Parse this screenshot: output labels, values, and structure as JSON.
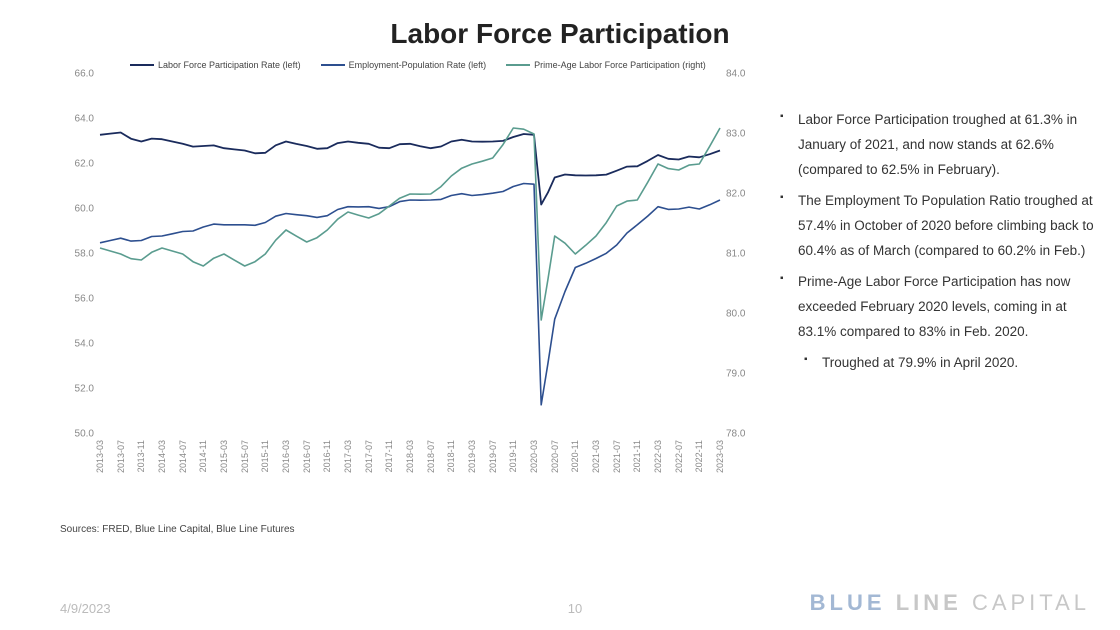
{
  "title": "Labor Force Participation",
  "sources": "Sources: FRED, Blue Line Capital, Blue Line Futures",
  "footer": {
    "date": "4/9/2023",
    "page": "10"
  },
  "brand": {
    "word1": "BLUE",
    "word2": "LINE",
    "word3": "CAPITAL"
  },
  "chart": {
    "type": "line-dual-axis",
    "background_color": "#ffffff",
    "grid_color": "#e8e8e8",
    "axis_label_color": "#888888",
    "axis_fontsize": 10,
    "left_axis": {
      "min": 50.0,
      "max": 66.0,
      "step": 2.0
    },
    "right_axis": {
      "min": 78.0,
      "max": 84.0,
      "step": 1.0
    },
    "x_labels": [
      "2013-03",
      "2013-07",
      "2013-11",
      "2014-03",
      "2014-07",
      "2014-11",
      "2015-03",
      "2015-07",
      "2015-11",
      "2016-03",
      "2016-07",
      "2016-11",
      "2017-03",
      "2017-07",
      "2017-11",
      "2018-03",
      "2018-07",
      "2018-11",
      "2019-03",
      "2019-07",
      "2019-11",
      "2020-03",
      "2020-07",
      "2020-11",
      "2021-03",
      "2021-07",
      "2021-11",
      "2022-03",
      "2022-07",
      "2022-11",
      "2023-03"
    ],
    "series": [
      {
        "name": "Labor Force Participation Rate (left)",
        "color": "#1a2b5c",
        "width": 1.8,
        "axis": "left",
        "data": [
          63.3,
          63.4,
          63.0,
          63.1,
          62.9,
          62.8,
          62.7,
          62.6,
          62.5,
          63.0,
          62.8,
          62.7,
          63.0,
          62.9,
          62.7,
          62.9,
          62.7,
          63.0,
          63.0,
          63.0,
          63.2,
          63.3,
          61.4,
          61.5,
          61.5,
          61.7,
          61.9,
          62.4,
          62.2,
          62.3,
          62.6
        ]
      },
      {
        "name": "Employment-Population Rate (left)",
        "color": "#2d4f8f",
        "width": 1.6,
        "axis": "left",
        "data": [
          58.5,
          58.7,
          58.6,
          58.8,
          59.0,
          59.2,
          59.3,
          59.3,
          59.4,
          59.8,
          59.7,
          59.7,
          60.1,
          60.1,
          60.1,
          60.4,
          60.4,
          60.6,
          60.6,
          60.7,
          61.0,
          61.1,
          55.1,
          57.4,
          57.8,
          58.4,
          59.3,
          60.1,
          60.0,
          60.0,
          60.4
        ]
      },
      {
        "name": "Prime-Age Labor Force Participation (right)",
        "color": "#5a9c8f",
        "width": 1.6,
        "axis": "right",
        "data": [
          81.1,
          81.0,
          80.9,
          81.1,
          81.0,
          80.8,
          81.0,
          80.8,
          81.0,
          81.4,
          81.2,
          81.4,
          81.7,
          81.6,
          81.8,
          82.0,
          82.0,
          82.3,
          82.5,
          82.6,
          83.1,
          83.0,
          81.3,
          81.0,
          81.3,
          81.8,
          81.9,
          82.5,
          82.4,
          82.5,
          83.1
        ]
      }
    ],
    "dip": {
      "index_after": 21,
      "lfpr_min": 60.2,
      "emp_min": 51.3,
      "prime_min": 79.9
    }
  },
  "bullets": [
    "Labor Force Participation troughed at 61.3% in January of 2021, and now stands at 62.6% (compared to 62.5% in February).",
    "The Employment To Population Ratio troughed at 57.4% in October of 2020 before climbing back to 60.4% as of March (compared to 60.2% in Feb.)",
    "Prime-Age Labor Force Participation has now exceeded February 2020 levels, coming in at 83.1% compared to 83% in Feb. 2020."
  ],
  "sub_bullet": "Troughed at 79.9% in April 2020."
}
